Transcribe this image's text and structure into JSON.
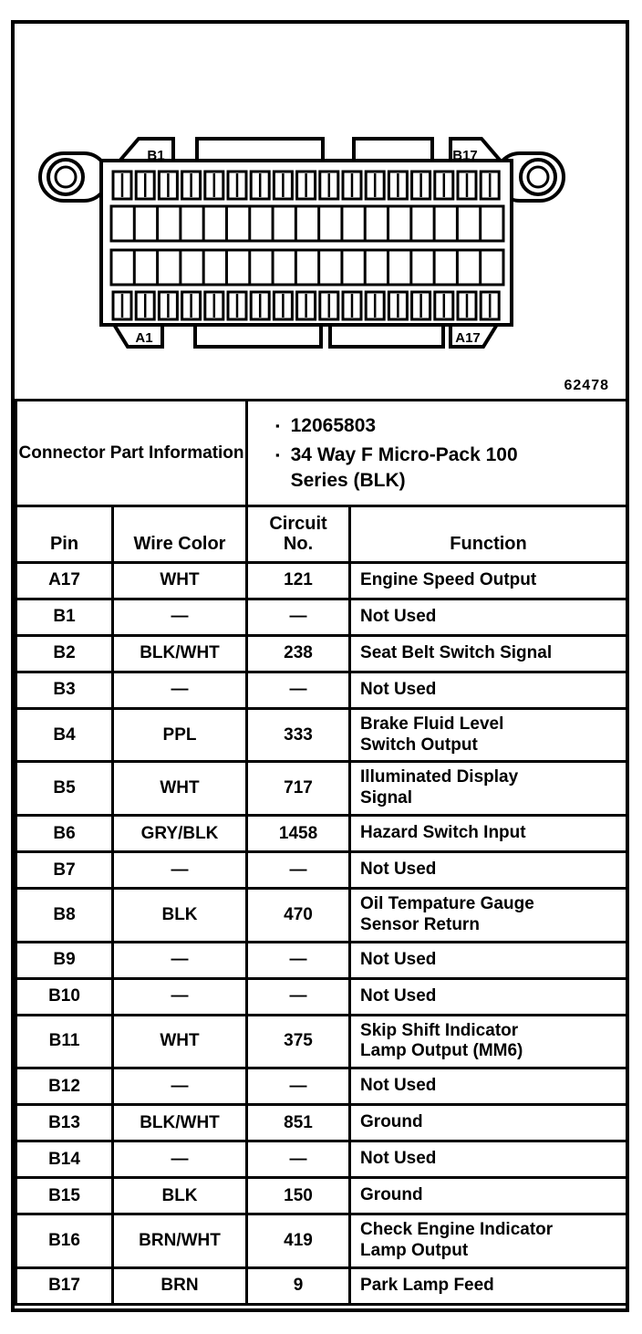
{
  "figure": {
    "number": "62478",
    "connector": {
      "pins_per_row": 17,
      "labels": {
        "top_left": "B1",
        "top_right": "B17",
        "bottom_left": "A1",
        "bottom_right": "A17"
      }
    }
  },
  "part_info": {
    "label": "Connector Part Information",
    "bullet": "▪",
    "items": [
      "12065803",
      "34 Way F Micro-Pack 100 Series (BLK)"
    ]
  },
  "table": {
    "headers": [
      "Pin",
      "Wire Color",
      "Circuit No.",
      "Function"
    ],
    "rows": [
      {
        "pin": "A17",
        "wire_color": "WHT",
        "circuit_no": "121",
        "function": "Engine Speed Output"
      },
      {
        "pin": "B1",
        "wire_color": "—",
        "circuit_no": "—",
        "function": "Not Used"
      },
      {
        "pin": "B2",
        "wire_color": "BLK/WHT",
        "circuit_no": "238",
        "function": "Seat Belt Switch Signal"
      },
      {
        "pin": "B3",
        "wire_color": "—",
        "circuit_no": "—",
        "function": "Not Used"
      },
      {
        "pin": "B4",
        "wire_color": "PPL",
        "circuit_no": "333",
        "function": "Brake Fluid Level Switch Output"
      },
      {
        "pin": "B5",
        "wire_color": "WHT",
        "circuit_no": "717",
        "function": "Illuminated Display Signal"
      },
      {
        "pin": "B6",
        "wire_color": "GRY/BLK",
        "circuit_no": "1458",
        "function": "Hazard Switch Input"
      },
      {
        "pin": "B7",
        "wire_color": "—",
        "circuit_no": "—",
        "function": "Not Used"
      },
      {
        "pin": "B8",
        "wire_color": "BLK",
        "circuit_no": "470",
        "function": "Oil Tempature Gauge Sensor Return"
      },
      {
        "pin": "B9",
        "wire_color": "—",
        "circuit_no": "—",
        "function": "Not Used"
      },
      {
        "pin": "B10",
        "wire_color": "—",
        "circuit_no": "—",
        "function": "Not Used"
      },
      {
        "pin": "B11",
        "wire_color": "WHT",
        "circuit_no": "375",
        "function": "Skip Shift Indicator Lamp Output (MM6)"
      },
      {
        "pin": "B12",
        "wire_color": "—",
        "circuit_no": "—",
        "function": "Not Used"
      },
      {
        "pin": "B13",
        "wire_color": "BLK/WHT",
        "circuit_no": "851",
        "function": "Ground"
      },
      {
        "pin": "B14",
        "wire_color": "—",
        "circuit_no": "—",
        "function": "Not Used"
      },
      {
        "pin": "B15",
        "wire_color": "BLK",
        "circuit_no": "150",
        "function": "Ground"
      },
      {
        "pin": "B16",
        "wire_color": "BRN/WHT",
        "circuit_no": "419",
        "function": "Check Engine Indicator Lamp Output"
      },
      {
        "pin": "B17",
        "wire_color": "BRN",
        "circuit_no": "9",
        "function": "Park Lamp Feed"
      }
    ]
  }
}
